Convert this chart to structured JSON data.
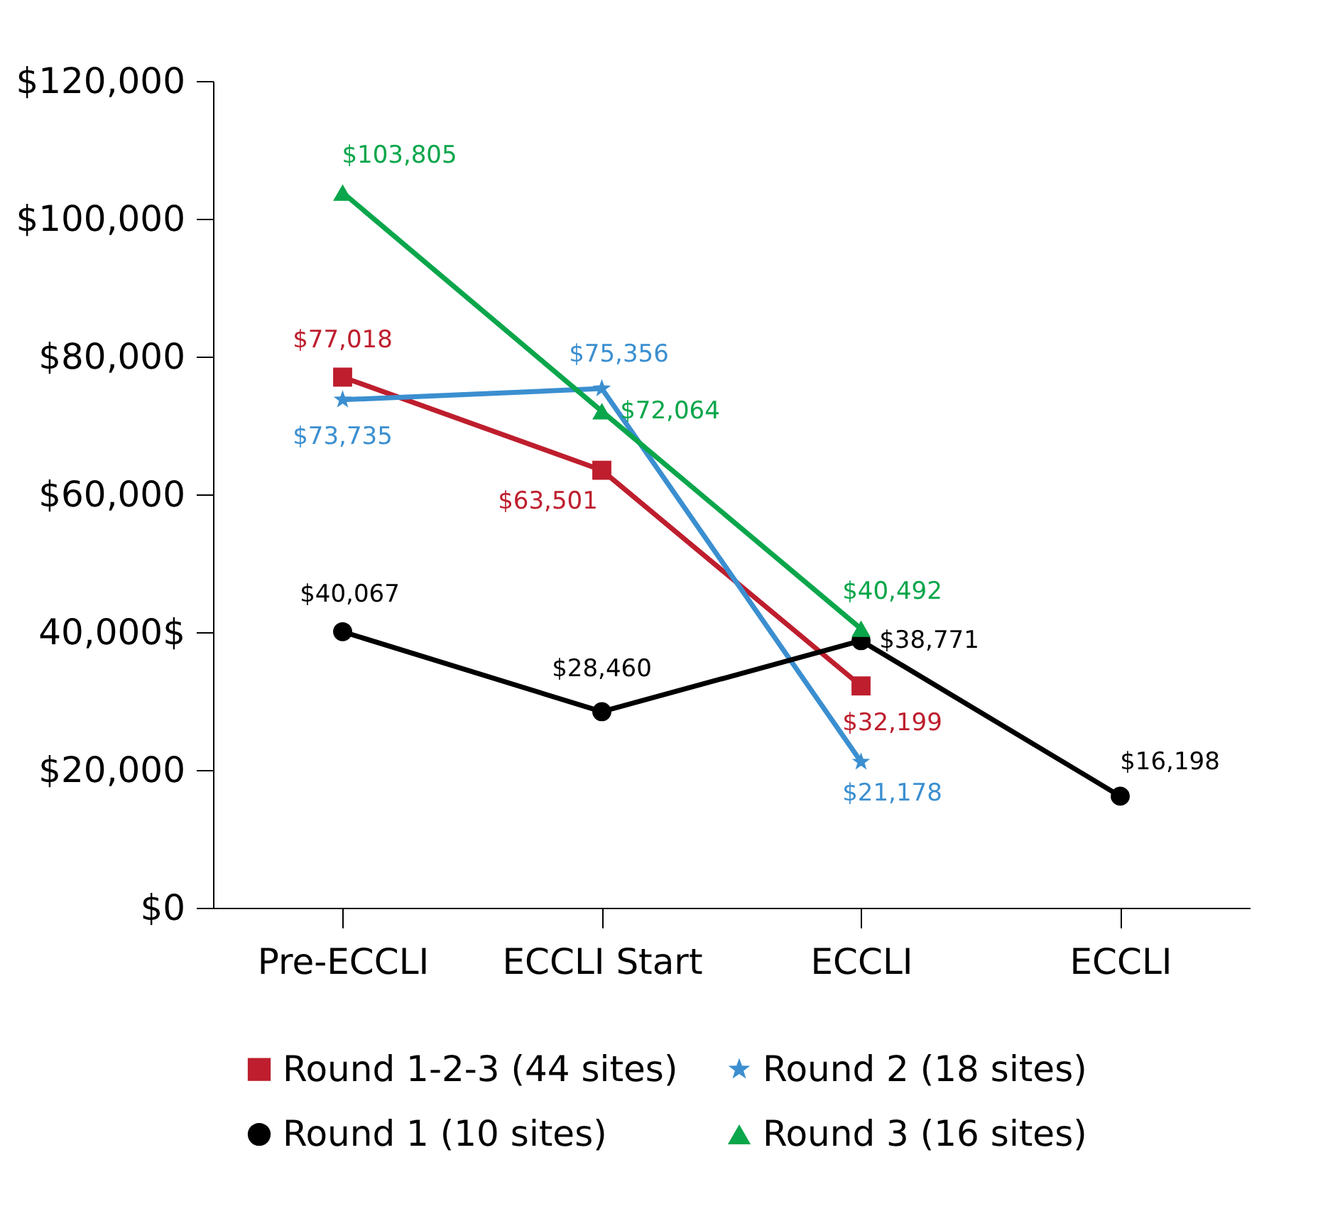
{
  "chart_data": {
    "type": "line",
    "categories": [
      "Pre-ECCLI",
      "ECCLI Start",
      "ECCLI",
      "ECCLI"
    ],
    "ylim": [
      0,
      120000
    ],
    "yticks": [
      {
        "value": 0,
        "label": "$0"
      },
      {
        "value": 20000,
        "label": "$20,000"
      },
      {
        "value": 40000,
        "label": "40,000$"
      },
      {
        "value": 60000,
        "label": "$60,000"
      },
      {
        "value": 80000,
        "label": "$80,000"
      },
      {
        "value": 100000,
        "label": "$100,000"
      },
      {
        "value": 120000,
        "label": "$120,000"
      }
    ],
    "grid": false,
    "legend": "bottom",
    "series": [
      {
        "name": "Round 1-2-3 (44 sites)",
        "color": "#be1e2d",
        "marker": "square",
        "values": [
          77018,
          63501,
          32199,
          null
        ],
        "value_labels": [
          "$77,018",
          "$63,501",
          "$32,199",
          null
        ]
      },
      {
        "name": "Round 2 (18 sites)",
        "color": "#3b8fd0",
        "marker": "star",
        "values": [
          73735,
          75356,
          21178,
          null
        ],
        "value_labels": [
          "$73,735",
          "$75,356",
          "$21,178",
          null
        ]
      },
      {
        "name": "Round 1 (10 sites)",
        "color": "#000000",
        "marker": "circle",
        "values": [
          40067,
          28460,
          38771,
          16198
        ],
        "value_labels": [
          "$40,067",
          "$28,460",
          "$38,771",
          "$16,198"
        ]
      },
      {
        "name": "Round 3 (16 sites)",
        "color": "#0aa64b",
        "marker": "triangle",
        "values": [
          103805,
          72064,
          40492,
          null
        ],
        "value_labels": [
          "$103,805",
          "$72,064",
          "$40,492",
          null
        ]
      }
    ]
  }
}
